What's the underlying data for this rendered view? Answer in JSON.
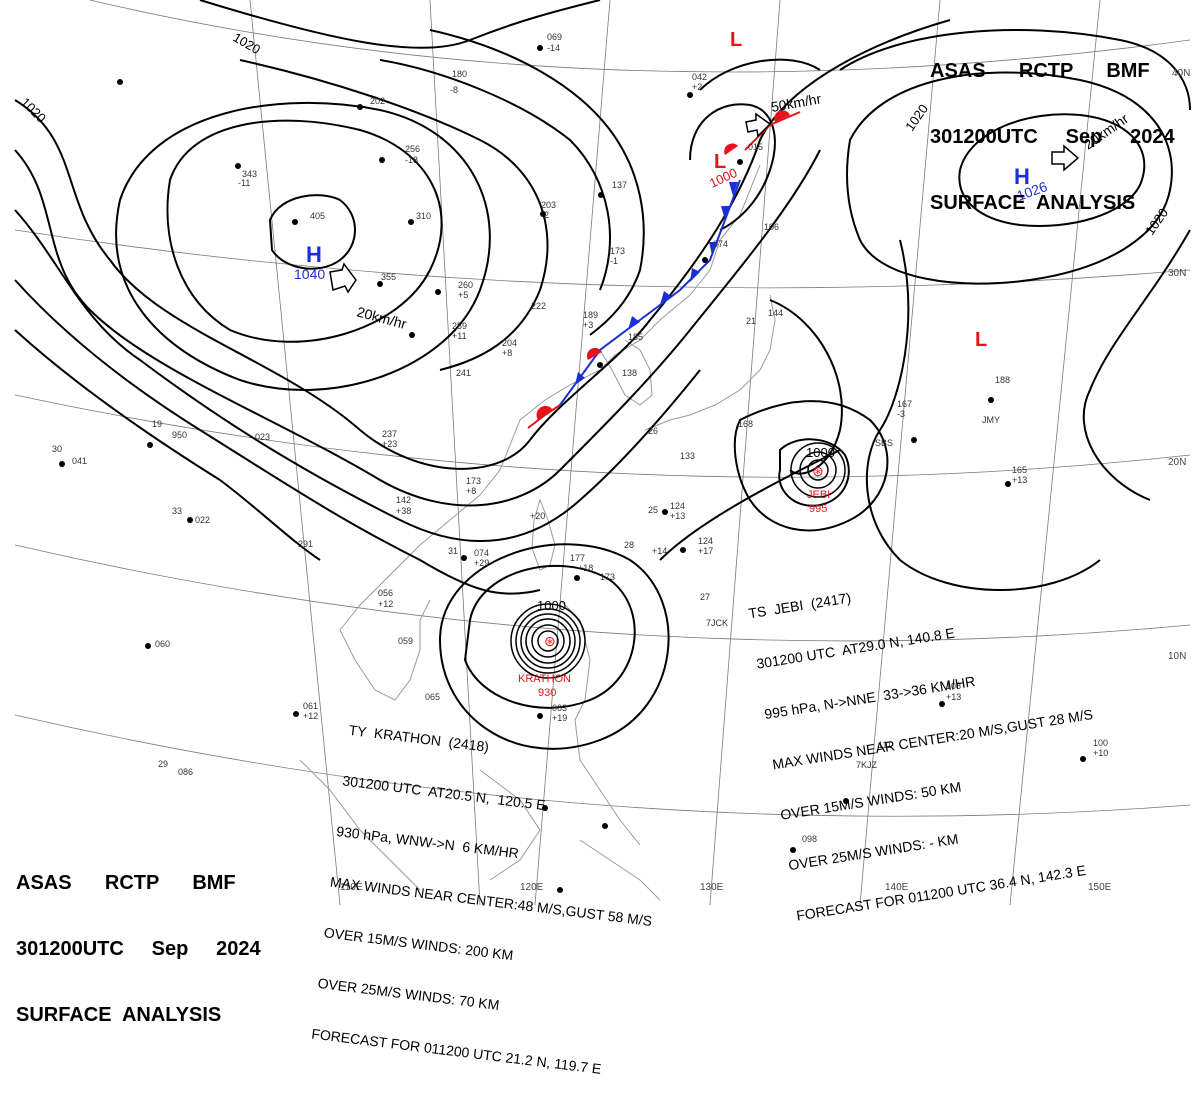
{
  "header_top": {
    "line1": "ASAS      RCTP      BMF",
    "line2": "301200UTC     Sep     2024",
    "line3": "SURFACE  ANALYSIS"
  },
  "header_bottom": {
    "line1": "ASAS      RCTP      BMF",
    "line2": "301200UTC     Sep     2024",
    "line3": "SURFACE  ANALYSIS"
  },
  "latitudes": [
    "40N",
    "30N",
    "20N",
    "10N"
  ],
  "longitudes": [
    "110E",
    "120E",
    "130E",
    "140E",
    "150E"
  ],
  "isobar_labels": [
    "1020",
    "1020",
    "1020",
    "1020",
    "1000",
    "1000"
  ],
  "pressure_systems": [
    {
      "symbol": "H",
      "value": "1040",
      "color": "#1a2fd6"
    },
    {
      "symbol": "H",
      "value": "1026",
      "color": "#1a2fd6"
    },
    {
      "symbol": "L",
      "value": "1000",
      "color": "#e8121b"
    },
    {
      "symbol": "L",
      "value": "",
      "color": "#e8121b"
    },
    {
      "symbol": "L",
      "value": "",
      "color": "#e8121b"
    }
  ],
  "motion_labels": [
    "20km/hr",
    "20km/hr",
    "50km/hr"
  ],
  "typhoon_labels": {
    "jebi_name": "JEBI",
    "jebi_pressure": "995",
    "krathon_name": "KRATHON",
    "krathon_pressure": "930"
  },
  "jebi": {
    "line1": "TS  JEBI  (2417)",
    "line2": "301200 UTC  AT29.0 N, 140.8 E",
    "line3": "995 hPa, N->NNE  33->36 KM/HR",
    "line4": "MAX WINDS NEAR CENTER:20 M/S,GUST 28 M/S",
    "line5": "OVER 15M/S WINDS: 50 KM",
    "line6": "OVER 25M/S WINDS: - KM",
    "line7": "FORECAST FOR 011200 UTC 36.4 N, 142.3 E"
  },
  "krathon": {
    "line1": "TY  KRATHON  (2418)",
    "line2": "301200 UTC  AT20.5 N,  120.5 E",
    "line3": "930 hPa, WNW->N  6 KM/HR",
    "line4": "MAX WINDS NEAR CENTER:48 M/S,GUST 58 M/S",
    "line5": "OVER 15M/S WINDS: 200 KM",
    "line6": "OVER 25M/S WINDS: 70 KM",
    "line7": "FORECAST FOR 011200 UTC 21.2 N, 119.7 E"
  },
  "station_values": [
    "069",
    "-14",
    "180",
    "-8",
    "202",
    "256",
    "-18",
    "343",
    "-11",
    "405",
    "310",
    "355",
    "260",
    "+5",
    "259",
    "+11",
    "203",
    "-2",
    "173",
    "-1",
    "137",
    "222",
    "189",
    "+3",
    "204",
    "+8",
    "241",
    "237",
    "+23",
    "142",
    "+38",
    "173",
    "+8",
    "+20",
    "950",
    "023",
    "041",
    "022",
    "291",
    "074",
    "+29",
    "177",
    "+18",
    "173",
    "056",
    "+12",
    "059",
    "060",
    "065",
    "061",
    "+12",
    "063",
    "+19",
    "086",
    "098",
    "108",
    "+13",
    "111",
    "100",
    "+10",
    "124",
    "+13",
    "124",
    "+17",
    "+14",
    "165",
    "+13",
    "188",
    "167",
    "-3",
    "168",
    "042",
    "+2",
    "015",
    "074",
    "106",
    "144",
    "185",
    "138",
    "133",
    "26",
    "28",
    "30",
    "33",
    "31",
    "29",
    "27",
    "25",
    "21",
    "19",
    "SBS",
    "JMY",
    "7JCK",
    "7KJZ"
  ],
  "colors": {
    "isobar": "#000000",
    "coast": "#9a9a9a",
    "grid": "#7a7a7a",
    "cold_front": "#1a2fd6",
    "warm_front": "#e8121b",
    "low": "#e8121b",
    "high": "#1a2fd6"
  }
}
